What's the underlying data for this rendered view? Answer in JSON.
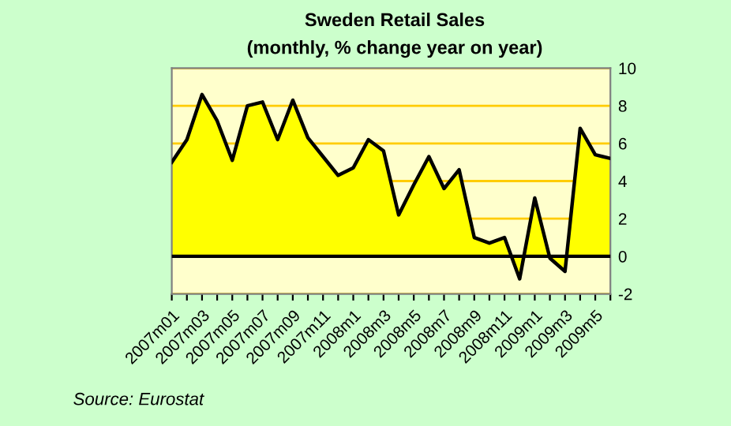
{
  "chart_data": {
    "type": "area",
    "title": "Sweden Retail Sales",
    "subtitle": "(monthly, % change year on year)",
    "categories": [
      "2007m01",
      null,
      "2007m03",
      null,
      "2007m05",
      null,
      "2007m07",
      null,
      "2007m09",
      null,
      "2007m11",
      null,
      "2008m1",
      null,
      "2008m3",
      null,
      "2008m5",
      null,
      "2008m7",
      null,
      "2008m9",
      null,
      "2008m11",
      null,
      "2009m1",
      null,
      "2009m3",
      null,
      "2009m5",
      null
    ],
    "series": [
      {
        "color": "#ffff00",
        "values": [
          5.0,
          6.2,
          8.6,
          7.2,
          5.1,
          8.0,
          8.2,
          6.2,
          8.3,
          6.3,
          5.3,
          4.3,
          4.7,
          6.2,
          5.6,
          2.2,
          3.8,
          5.3,
          3.6,
          4.6,
          1.0,
          0.7,
          1.0,
          -1.2,
          3.1,
          -0.1,
          -0.8,
          6.8,
          5.4,
          5.2
        ]
      }
    ],
    "ylim": [
      -2,
      10
    ],
    "yticks": [
      -2,
      0,
      2,
      4,
      6,
      8,
      10
    ],
    "grid": "y",
    "annotations": [
      "Source: Eurostat"
    ]
  }
}
